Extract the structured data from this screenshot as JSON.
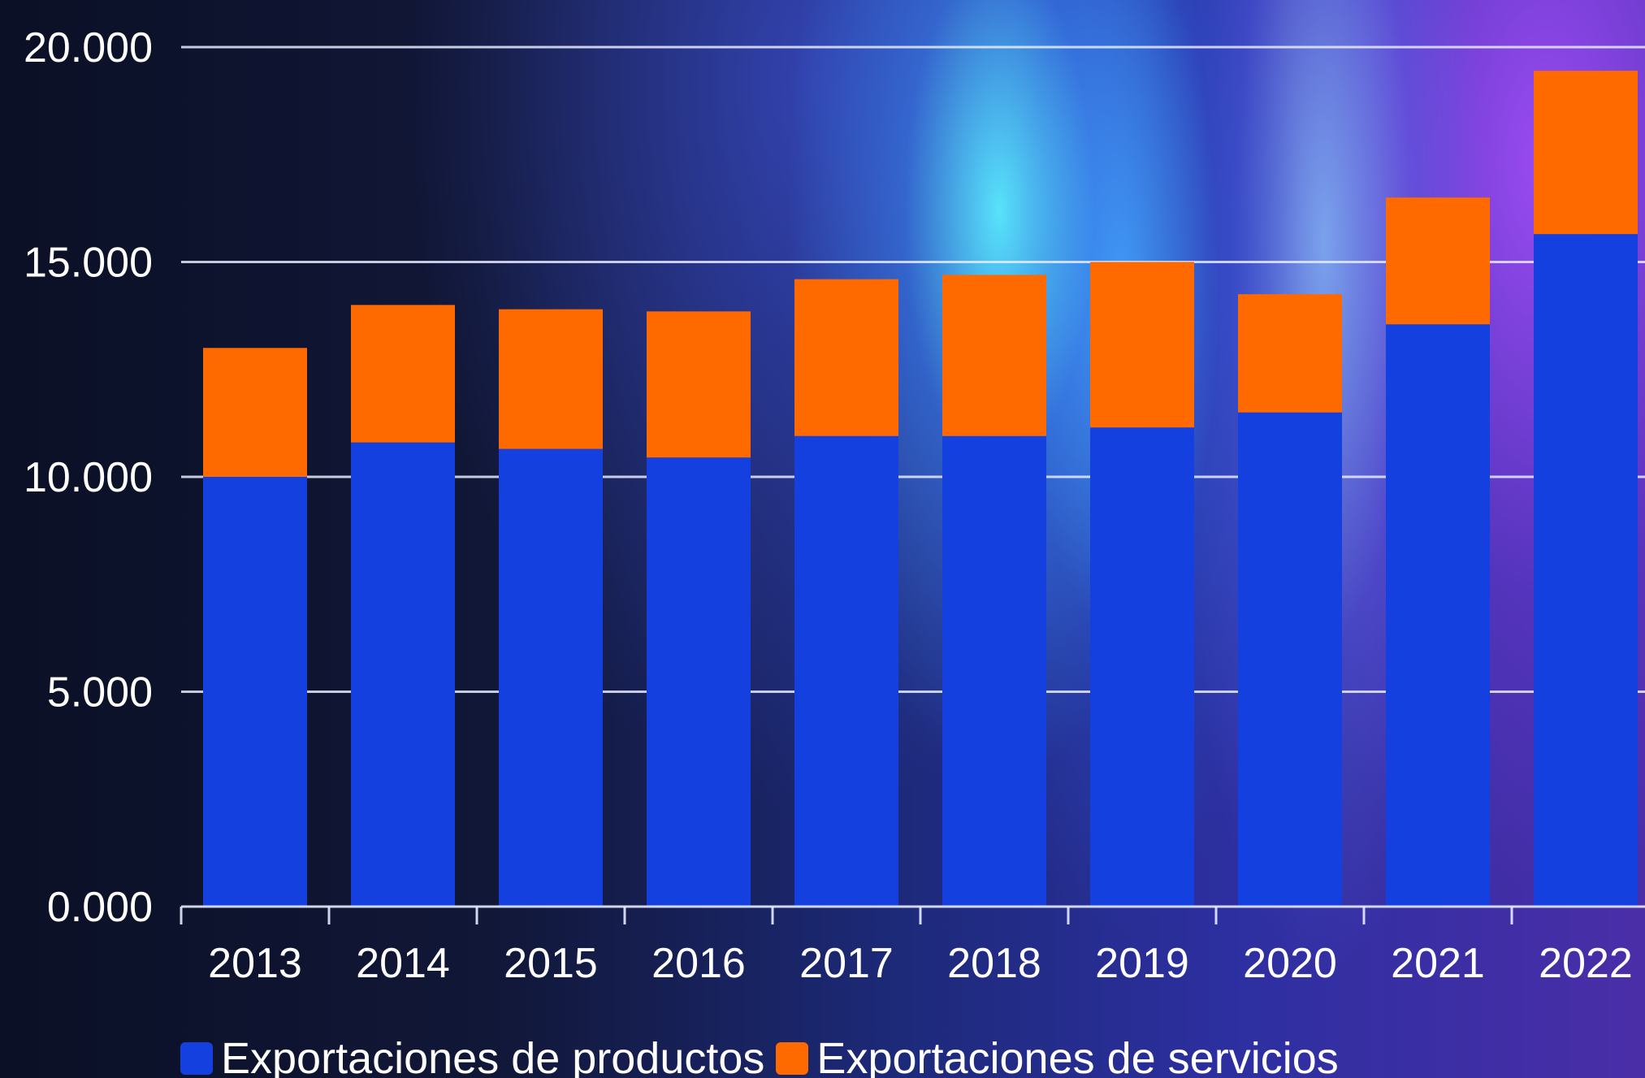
{
  "chart_data": {
    "type": "bar",
    "stacked": true,
    "categories": [
      "2013",
      "2014",
      "2015",
      "2016",
      "2017",
      "2018",
      "2019",
      "2020",
      "2021",
      "2022"
    ],
    "series": [
      {
        "name": "Exportaciones de productos",
        "color": "#1440e0",
        "values": [
          10000,
          10800,
          10650,
          10450,
          10950,
          10950,
          11150,
          11500,
          13550,
          15650
        ]
      },
      {
        "name": "Exportaciones de servicios",
        "color": "#ff6a00",
        "values": [
          3000,
          3200,
          3250,
          3400,
          3650,
          3750,
          3850,
          2750,
          2950,
          3800
        ]
      }
    ],
    "y_ticks": [
      "0.000",
      "5.000",
      "10.000",
      "15.000",
      "20.000"
    ],
    "ylim": [
      0,
      20000
    ],
    "grid": true,
    "legend_position": "bottom",
    "title": "",
    "xlabel": "",
    "ylabel": ""
  }
}
